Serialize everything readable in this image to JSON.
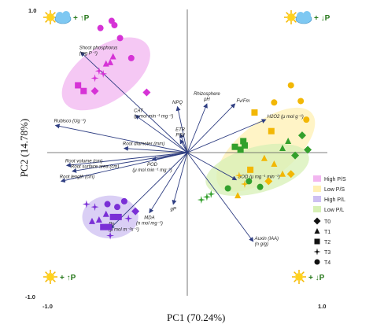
{
  "chart_data": {
    "type": "scatter",
    "title": "",
    "xlabel": "PC1 (70.24%)",
    "ylabel": "PC2 (14.78%)",
    "xlim": [
      -1.0,
      1.0
    ],
    "ylim": [
      -1.0,
      1.0
    ],
    "x_ticks": [
      "-1.0",
      "1.0"
    ],
    "y_ticks": [
      "1.0",
      "-1.0"
    ],
    "grid": false,
    "legend_position": "right",
    "corner_labels": [
      {
        "icon": "sun-cloud-icon",
        "text": "+ ↑P",
        "corner": "top-left"
      },
      {
        "icon": "sun-cloud-icon",
        "text": "+ ↓P",
        "corner": "top-right"
      },
      {
        "icon": "sun-icon",
        "text": "+ ↑P",
        "corner": "bottom-left"
      },
      {
        "icon": "sun-icon",
        "text": "+ ↓P",
        "corner": "bottom-right"
      }
    ],
    "colors": {
      "High P/S": "#d633d6",
      "Low P/S": "#f2b705",
      "High P/L": "#7a2fd6",
      "Low P/L": "#33a02c"
    },
    "ellipses": [
      {
        "name": "High P/S",
        "fill": "#f2b6f0",
        "cx": -0.58,
        "cy": 0.55,
        "rx": 0.36,
        "ry": 0.19,
        "angle": -35
      },
      {
        "name": "Low P/S",
        "fill": "#fff0b3",
        "cx": 0.56,
        "cy": 0.02,
        "rx": 0.42,
        "ry": 0.19,
        "angle": -38
      },
      {
        "name": "High P/L",
        "fill": "#cdbff2",
        "cx": -0.55,
        "cy": -0.45,
        "rx": 0.2,
        "ry": 0.15,
        "angle": 0
      },
      {
        "name": "Low P/L",
        "fill": "#d7f0b5",
        "cx": 0.5,
        "cy": -0.12,
        "rx": 0.38,
        "ry": 0.16,
        "angle": -15
      }
    ],
    "series": [
      {
        "name": "High P/S",
        "color": "#d633d6",
        "points": [
          {
            "x": -0.62,
            "y": 0.87,
            "shape": "T4"
          },
          {
            "x": -0.54,
            "y": 0.92,
            "shape": "T4"
          },
          {
            "x": -0.48,
            "y": 0.8,
            "shape": "T4"
          },
          {
            "x": -0.52,
            "y": 0.89,
            "shape": "T4"
          },
          {
            "x": -0.4,
            "y": 0.66,
            "shape": "T4"
          },
          {
            "x": -0.53,
            "y": 0.67,
            "shape": "T1"
          },
          {
            "x": -0.58,
            "y": 0.62,
            "shape": "T1"
          },
          {
            "x": -0.55,
            "y": 0.63,
            "shape": "T1"
          },
          {
            "x": -0.63,
            "y": 0.57,
            "shape": "T3"
          },
          {
            "x": -0.6,
            "y": 0.55,
            "shape": "T3"
          },
          {
            "x": -0.66,
            "y": 0.52,
            "shape": "T3"
          },
          {
            "x": -0.78,
            "y": 0.47,
            "shape": "T2"
          },
          {
            "x": -0.74,
            "y": 0.43,
            "shape": "T2"
          },
          {
            "x": -0.66,
            "y": 0.43,
            "shape": "T0"
          },
          {
            "x": -0.29,
            "y": 0.42,
            "shape": "T0"
          }
        ]
      },
      {
        "name": "Low P/S",
        "color": "#f2b705",
        "points": [
          {
            "x": 0.74,
            "y": 0.47,
            "shape": "T4"
          },
          {
            "x": 0.81,
            "y": 0.36,
            "shape": "T4"
          },
          {
            "x": 0.85,
            "y": 0.23,
            "shape": "T4"
          },
          {
            "x": 0.62,
            "y": 0.35,
            "shape": "T4"
          },
          {
            "x": 0.48,
            "y": 0.28,
            "shape": "T2"
          },
          {
            "x": 0.6,
            "y": 0.15,
            "shape": "T2"
          },
          {
            "x": 0.45,
            "y": -0.12,
            "shape": "T2"
          },
          {
            "x": 0.55,
            "y": -0.04,
            "shape": "T1"
          },
          {
            "x": 0.62,
            "y": -0.08,
            "shape": "T1"
          },
          {
            "x": 0.68,
            "y": -0.15,
            "shape": "T1"
          },
          {
            "x": 0.74,
            "y": -0.15,
            "shape": "T0"
          },
          {
            "x": 0.58,
            "y": -0.2,
            "shape": "T0"
          },
          {
            "x": 0.37,
            "y": -0.16,
            "shape": "T3"
          },
          {
            "x": 0.41,
            "y": -0.22,
            "shape": "T3"
          },
          {
            "x": 0.36,
            "y": -0.3,
            "shape": "T1"
          }
        ]
      },
      {
        "name": "High P/L",
        "color": "#7a2fd6",
        "points": [
          {
            "x": -0.72,
            "y": -0.36,
            "shape": "T3"
          },
          {
            "x": -0.66,
            "y": -0.38,
            "shape": "T3"
          },
          {
            "x": -0.57,
            "y": -0.36,
            "shape": "T4"
          },
          {
            "x": -0.5,
            "y": -0.38,
            "shape": "T4"
          },
          {
            "x": -0.45,
            "y": -0.34,
            "shape": "T4"
          },
          {
            "x": -0.58,
            "y": -0.43,
            "shape": "T1"
          },
          {
            "x": -0.53,
            "y": -0.45,
            "shape": "T2"
          },
          {
            "x": -0.49,
            "y": -0.45,
            "shape": "T2"
          },
          {
            "x": -0.63,
            "y": -0.47,
            "shape": "T1"
          },
          {
            "x": -0.6,
            "y": -0.52,
            "shape": "T2"
          },
          {
            "x": -0.56,
            "y": -0.52,
            "shape": "T2"
          },
          {
            "x": -0.68,
            "y": -0.48,
            "shape": "T1"
          },
          {
            "x": -0.55,
            "y": -0.58,
            "shape": "T3"
          },
          {
            "x": -0.42,
            "y": -0.46,
            "shape": "T3"
          },
          {
            "x": -0.37,
            "y": -0.41,
            "shape": "T0"
          }
        ]
      },
      {
        "name": "Low P/L",
        "color": "#33a02c",
        "points": [
          {
            "x": 0.38,
            "y": 0.02,
            "shape": "T2"
          },
          {
            "x": 0.41,
            "y": 0.05,
            "shape": "T2"
          },
          {
            "x": 0.4,
            "y": 0.08,
            "shape": "T2"
          },
          {
            "x": 0.34,
            "y": 0.04,
            "shape": "T2"
          },
          {
            "x": 0.68,
            "y": 0.03,
            "shape": "T1"
          },
          {
            "x": 0.72,
            "y": 0.08,
            "shape": "T1"
          },
          {
            "x": 0.82,
            "y": 0.12,
            "shape": "T0"
          },
          {
            "x": 0.86,
            "y": 0.02,
            "shape": "T0"
          },
          {
            "x": 0.77,
            "y": -0.02,
            "shape": "T0"
          },
          {
            "x": 0.44,
            "y": -0.2,
            "shape": "T4"
          },
          {
            "x": 0.52,
            "y": -0.24,
            "shape": "T4"
          },
          {
            "x": 0.29,
            "y": -0.25,
            "shape": "T4"
          },
          {
            "x": 0.17,
            "y": -0.29,
            "shape": "T3"
          },
          {
            "x": 0.14,
            "y": -0.31,
            "shape": "T3"
          },
          {
            "x": 0.1,
            "y": -0.33,
            "shape": "T3"
          }
        ]
      }
    ],
    "loadings": [
      {
        "label": "Shoot phosphorus\n(mg P⁻¹)",
        "x": -0.76,
        "y": 0.7
      },
      {
        "label": "Rubisco (Ug⁻¹)",
        "x": -0.94,
        "y": 0.19
      },
      {
        "label": "CAT\n(μ mol min⁻¹ mg⁻¹)",
        "x": -0.37,
        "y": 0.26
      },
      {
        "label": "NPQ",
        "x": -0.07,
        "y": 0.32
      },
      {
        "label": "Rhizosphere\npH",
        "x": 0.14,
        "y": 0.34
      },
      {
        "label": "Fv/Fm",
        "x": 0.34,
        "y": 0.34
      },
      {
        "label": "H2O2 (μ mol g⁻¹)",
        "x": 0.56,
        "y": 0.23
      },
      {
        "label": "ETR",
        "x": -0.05,
        "y": 0.13
      },
      {
        "label": "PSII",
        "x": -0.05,
        "y": 0.09
      },
      {
        "label": "Root diameter (mm)",
        "x": -0.45,
        "y": 0.03
      },
      {
        "label": "POD\n(μ mol min⁻¹ mg⁻¹)",
        "x": -0.25,
        "y": -0.05
      },
      {
        "label": "Root volume (cm)",
        "x": -0.86,
        "y": -0.09
      },
      {
        "label": "Root surface area (cm)",
        "x": -0.82,
        "y": -0.13
      },
      {
        "label": "Root length (cm)",
        "x": -0.9,
        "y": -0.2
      },
      {
        "label": "SOD (μ mg⁻¹ min⁻¹)",
        "x": 0.35,
        "y": -0.19
      },
      {
        "label": "gP",
        "x": -0.1,
        "y": -0.36
      },
      {
        "label": "MDA\n(n mol mg⁻¹)",
        "x": -0.27,
        "y": -0.42
      },
      {
        "label": "Pn\n(μ mol m⁻²s⁻¹)",
        "x": -0.55,
        "y": -0.53
      },
      {
        "label": "Auxin (IAA)\n(n g/g)",
        "x": 0.47,
        "y": -0.62
      }
    ],
    "legend": {
      "groups": [
        "High P/S",
        "Low P/S",
        "High P/L",
        "Low P/L"
      ],
      "shapes": [
        "T0",
        "T1",
        "T2",
        "T3",
        "T4"
      ]
    }
  }
}
